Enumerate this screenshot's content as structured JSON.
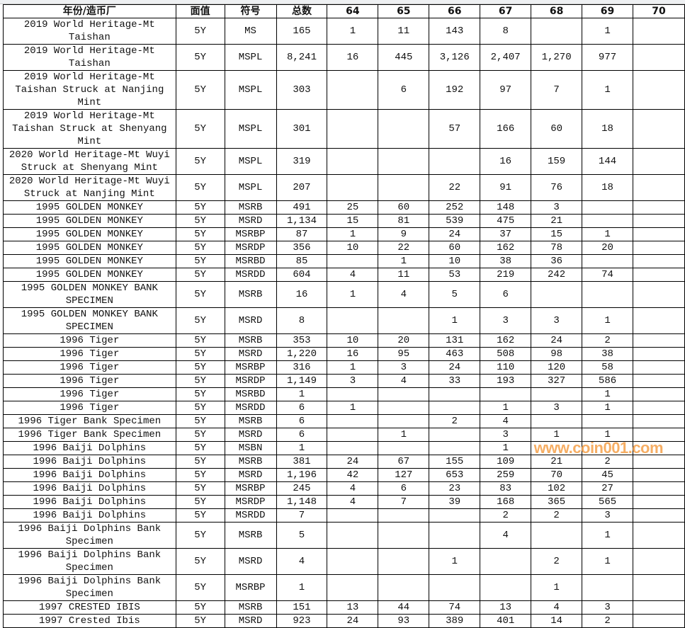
{
  "headers": [
    "年份/造币厂",
    "面值",
    "符号",
    "总数",
    "64",
    "65",
    "66",
    "67",
    "68",
    "69",
    "70"
  ],
  "rows": [
    {
      "name": "2019 World Heritage-Mt Taishan",
      "lines": 2,
      "cells": [
        "5Y",
        "MS",
        "165",
        "1",
        "11",
        "143",
        "8",
        "",
        "1",
        ""
      ]
    },
    {
      "name": "2019 World Heritage-Mt Taishan",
      "lines": 2,
      "cells": [
        "5Y",
        "MSPL",
        "8,241",
        "16",
        "445",
        "3,126",
        "2,407",
        "1,270",
        "977",
        ""
      ]
    },
    {
      "name": "2019 World Heritage-Mt Taishan Struck at Nanjing Mint",
      "lines": 3,
      "cells": [
        "5Y",
        "MSPL",
        "303",
        "",
        "6",
        "192",
        "97",
        "7",
        "1",
        ""
      ]
    },
    {
      "name": "2019 World Heritage-Mt Taishan Struck at Shenyang Mint",
      "lines": 3,
      "cells": [
        "5Y",
        "MSPL",
        "301",
        "",
        "",
        "57",
        "166",
        "60",
        "18",
        ""
      ]
    },
    {
      "name": "2020 World Heritage-Mt Wuyi Struck at Shenyang Mint",
      "lines": 2,
      "cells": [
        "5Y",
        "MSPL",
        "319",
        "",
        "",
        "",
        "16",
        "159",
        "144",
        ""
      ]
    },
    {
      "name": "2020 World Heritage-Mt Wuyi Struck at Nanjing Mint",
      "lines": 2,
      "cells": [
        "5Y",
        "MSPL",
        "207",
        "",
        "",
        "22",
        "91",
        "76",
        "18",
        ""
      ]
    },
    {
      "name": "1995 GOLDEN MONKEY",
      "lines": 1,
      "cells": [
        "5Y",
        "MSRB",
        "491",
        "25",
        "60",
        "252",
        "148",
        "3",
        "",
        ""
      ]
    },
    {
      "name": "1995 GOLDEN MONKEY",
      "lines": 1,
      "cells": [
        "5Y",
        "MSRD",
        "1,134",
        "15",
        "81",
        "539",
        "475",
        "21",
        "",
        ""
      ]
    },
    {
      "name": "1995 GOLDEN MONKEY",
      "lines": 1,
      "cells": [
        "5Y",
        "MSRBP",
        "87",
        "1",
        "9",
        "24",
        "37",
        "15",
        "1",
        ""
      ]
    },
    {
      "name": "1995 GOLDEN MONKEY",
      "lines": 1,
      "cells": [
        "5Y",
        "MSRDP",
        "356",
        "10",
        "22",
        "60",
        "162",
        "78",
        "20",
        ""
      ]
    },
    {
      "name": "1995 GOLDEN MONKEY",
      "lines": 1,
      "cells": [
        "5Y",
        "MSRBD",
        "85",
        "",
        "1",
        "10",
        "38",
        "36",
        "",
        ""
      ]
    },
    {
      "name": "1995 GOLDEN MONKEY",
      "lines": 1,
      "cells": [
        "5Y",
        "MSRDD",
        "604",
        "4",
        "11",
        "53",
        "219",
        "242",
        "74",
        ""
      ]
    },
    {
      "name": "1995 GOLDEN MONKEY BANK SPECIMEN",
      "lines": 2,
      "cells": [
        "5Y",
        "MSRB",
        "16",
        "1",
        "4",
        "5",
        "6",
        "",
        "",
        ""
      ]
    },
    {
      "name": "1995 GOLDEN MONKEY BANK SPECIMEN",
      "lines": 2,
      "cells": [
        "5Y",
        "MSRD",
        "8",
        "",
        "",
        "1",
        "3",
        "3",
        "1",
        ""
      ]
    },
    {
      "name": "1996 Tiger",
      "lines": 1,
      "cells": [
        "5Y",
        "MSRB",
        "353",
        "10",
        "20",
        "131",
        "162",
        "24",
        "2",
        ""
      ]
    },
    {
      "name": "1996 Tiger",
      "lines": 1,
      "cells": [
        "5Y",
        "MSRD",
        "1,220",
        "16",
        "95",
        "463",
        "508",
        "98",
        "38",
        ""
      ]
    },
    {
      "name": "1996 Tiger",
      "lines": 1,
      "cells": [
        "5Y",
        "MSRBP",
        "316",
        "1",
        "3",
        "24",
        "110",
        "120",
        "58",
        ""
      ]
    },
    {
      "name": "1996 Tiger",
      "lines": 1,
      "cells": [
        "5Y",
        "MSRDP",
        "1,149",
        "3",
        "4",
        "33",
        "193",
        "327",
        "586",
        ""
      ]
    },
    {
      "name": "1996 Tiger",
      "lines": 1,
      "cells": [
        "5Y",
        "MSRBD",
        "1",
        "",
        "",
        "",
        "",
        "",
        "1",
        ""
      ]
    },
    {
      "name": "1996 Tiger",
      "lines": 1,
      "cells": [
        "5Y",
        "MSRDD",
        "6",
        "1",
        "",
        "",
        "1",
        "3",
        "1",
        ""
      ]
    },
    {
      "name": "1996 Tiger Bank Specimen",
      "lines": 1,
      "cells": [
        "5Y",
        "MSRB",
        "6",
        "",
        "",
        "2",
        "4",
        "",
        "",
        ""
      ]
    },
    {
      "name": "1996 Tiger Bank Specimen",
      "lines": 1,
      "cells": [
        "5Y",
        "MSRD",
        "6",
        "",
        "1",
        "",
        "3",
        "1",
        "1",
        ""
      ]
    },
    {
      "name": "1996 Baiji Dolphins",
      "lines": 1,
      "cells": [
        "5Y",
        "MSBN",
        "1",
        "",
        "",
        "",
        "1",
        "",
        "",
        ""
      ]
    },
    {
      "name": "1996 Baiji Dolphins",
      "lines": 1,
      "cells": [
        "5Y",
        "MSRB",
        "381",
        "24",
        "67",
        "155",
        "109",
        "21",
        "2",
        ""
      ]
    },
    {
      "name": "1996 Baiji Dolphins",
      "lines": 1,
      "cells": [
        "5Y",
        "MSRD",
        "1,196",
        "42",
        "127",
        "653",
        "259",
        "70",
        "45",
        ""
      ]
    },
    {
      "name": "1996 Baiji Dolphins",
      "lines": 1,
      "cells": [
        "5Y",
        "MSRBP",
        "245",
        "4",
        "6",
        "23",
        "83",
        "102",
        "27",
        ""
      ]
    },
    {
      "name": "1996 Baiji Dolphins",
      "lines": 1,
      "cells": [
        "5Y",
        "MSRDP",
        "1,148",
        "4",
        "7",
        "39",
        "168",
        "365",
        "565",
        ""
      ]
    },
    {
      "name": "1996 Baiji Dolphins",
      "lines": 1,
      "cells": [
        "5Y",
        "MSRDD",
        "7",
        "",
        "",
        "",
        "2",
        "2",
        "3",
        ""
      ]
    },
    {
      "name": "1996 Baiji Dolphins Bank Specimen",
      "lines": 2,
      "cells": [
        "5Y",
        "MSRB",
        "5",
        "",
        "",
        "",
        "4",
        "",
        "1",
        ""
      ]
    },
    {
      "name": "1996 Baiji Dolphins Bank Specimen",
      "lines": 2,
      "cells": [
        "5Y",
        "MSRD",
        "4",
        "",
        "",
        "1",
        "",
        "2",
        "1",
        ""
      ]
    },
    {
      "name": "1996 Baiji Dolphins Bank Specimen",
      "lines": 2,
      "cells": [
        "5Y",
        "MSRBP",
        "1",
        "",
        "",
        "",
        "",
        "1",
        "",
        ""
      ]
    },
    {
      "name": "1997 CRESTED IBIS",
      "lines": 1,
      "cells": [
        "5Y",
        "MSRB",
        "151",
        "13",
        "44",
        "74",
        "13",
        "4",
        "3",
        ""
      ]
    },
    {
      "name": "1997 Crested Ibis",
      "lines": 1,
      "cells": [
        "5Y",
        "MSRD",
        "923",
        "24",
        "93",
        "389",
        "401",
        "14",
        "2",
        ""
      ]
    }
  ],
  "watermark": "www.coin001.com"
}
